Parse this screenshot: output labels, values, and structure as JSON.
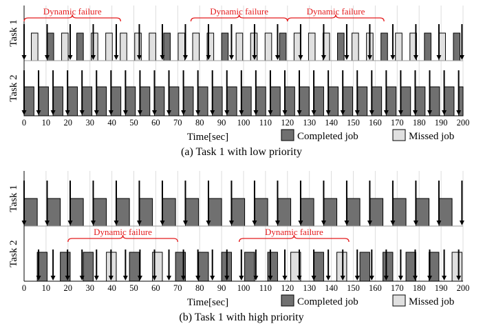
{
  "chart_data": [
    {
      "type": "gantt",
      "caption": "(a) Task 1 with low priority",
      "xlabel": "Time[sec]",
      "xlim": [
        0,
        200
      ],
      "xticks": [
        0,
        10,
        20,
        30,
        40,
        50,
        60,
        70,
        80,
        90,
        100,
        110,
        120,
        130,
        140,
        150,
        160,
        170,
        180,
        190,
        200
      ],
      "legend": [
        {
          "label": "Completed job",
          "color": "#707070"
        },
        {
          "label": "Missed job",
          "color": "#e0e0e0"
        }
      ],
      "rows": [
        {
          "name": "Task 1",
          "arrivals": [
            0,
            10.5,
            21,
            31.5,
            42,
            52.5,
            63,
            73.5,
            84,
            94.5,
            105,
            115.5,
            126,
            136.5,
            147,
            157.5,
            168,
            178.5,
            189,
            199.5
          ],
          "jobs": [
            {
              "start": 3.3,
              "end": 6.3,
              "status": "missed"
            },
            {
              "start": 10.5,
              "end": 13.5,
              "status": "completed"
            },
            {
              "start": 17.1,
              "end": 20.1,
              "status": "missed"
            },
            {
              "start": 24,
              "end": 27,
              "status": "completed"
            },
            {
              "start": 30.6,
              "end": 33.6,
              "status": "missed"
            },
            {
              "start": 37.2,
              "end": 40.2,
              "status": "missed"
            },
            {
              "start": 43.8,
              "end": 46.8,
              "status": "missed"
            },
            {
              "start": 50.4,
              "end": 53.4,
              "status": "missed"
            },
            {
              "start": 57,
              "end": 60,
              "status": "missed"
            },
            {
              "start": 63.6,
              "end": 66.6,
              "status": "completed"
            },
            {
              "start": 70.2,
              "end": 73.2,
              "status": "missed"
            },
            {
              "start": 76.8,
              "end": 79.8,
              "status": "missed"
            },
            {
              "start": 83.4,
              "end": 86.4,
              "status": "missed"
            },
            {
              "start": 90,
              "end": 93,
              "status": "completed"
            },
            {
              "start": 96.6,
              "end": 99.6,
              "status": "missed"
            },
            {
              "start": 103.2,
              "end": 106.2,
              "status": "missed"
            },
            {
              "start": 109.8,
              "end": 112.8,
              "status": "missed"
            },
            {
              "start": 116.4,
              "end": 119.4,
              "status": "completed"
            },
            {
              "start": 123,
              "end": 126,
              "status": "missed"
            },
            {
              "start": 129.6,
              "end": 132.6,
              "status": "missed"
            },
            {
              "start": 136.2,
              "end": 139.2,
              "status": "missed"
            },
            {
              "start": 142.8,
              "end": 145.8,
              "status": "completed"
            },
            {
              "start": 149.4,
              "end": 152.4,
              "status": "missed"
            },
            {
              "start": 156,
              "end": 159,
              "status": "missed"
            },
            {
              "start": 162.6,
              "end": 165.6,
              "status": "completed"
            },
            {
              "start": 169.2,
              "end": 172.2,
              "status": "missed"
            },
            {
              "start": 175.8,
              "end": 178.8,
              "status": "missed"
            },
            {
              "start": 182.4,
              "end": 185.4,
              "status": "completed"
            },
            {
              "start": 189,
              "end": 192,
              "status": "missed"
            },
            {
              "start": 195.6,
              "end": 198.6,
              "status": "completed"
            }
          ]
        },
        {
          "name": "Task 2",
          "arrivals": [
            0,
            6.6,
            13.2,
            19.8,
            26.4,
            33,
            39.6,
            46.2,
            52.8,
            59.4,
            66,
            72.6,
            79.2,
            85.8,
            92.4,
            99,
            105.6,
            112.2,
            118.8,
            125.4,
            132,
            138.6,
            145.2,
            151.8,
            158.4,
            165,
            171.6,
            178.2,
            184.8,
            191.4,
            198
          ],
          "jobs": [
            {
              "start": 0,
              "end": 4.5,
              "status": "completed"
            },
            {
              "start": 6.6,
              "end": 11.1,
              "status": "completed"
            },
            {
              "start": 13.2,
              "end": 17.7,
              "status": "completed"
            },
            {
              "start": 19.8,
              "end": 24.3,
              "status": "completed"
            },
            {
              "start": 26.4,
              "end": 30.9,
              "status": "completed"
            },
            {
              "start": 33,
              "end": 37.5,
              "status": "completed"
            },
            {
              "start": 39.6,
              "end": 44.1,
              "status": "completed"
            },
            {
              "start": 46.2,
              "end": 50.7,
              "status": "completed"
            },
            {
              "start": 52.8,
              "end": 57.3,
              "status": "completed"
            },
            {
              "start": 59.4,
              "end": 63.9,
              "status": "completed"
            },
            {
              "start": 66,
              "end": 70.5,
              "status": "completed"
            },
            {
              "start": 72.6,
              "end": 77.1,
              "status": "completed"
            },
            {
              "start": 79.2,
              "end": 83.7,
              "status": "completed"
            },
            {
              "start": 85.8,
              "end": 90.3,
              "status": "completed"
            },
            {
              "start": 92.4,
              "end": 96.9,
              "status": "completed"
            },
            {
              "start": 99,
              "end": 103.5,
              "status": "completed"
            },
            {
              "start": 105.6,
              "end": 110.1,
              "status": "completed"
            },
            {
              "start": 112.2,
              "end": 116.7,
              "status": "completed"
            },
            {
              "start": 118.8,
              "end": 123.3,
              "status": "completed"
            },
            {
              "start": 125.4,
              "end": 129.9,
              "status": "completed"
            },
            {
              "start": 132,
              "end": 136.5,
              "status": "completed"
            },
            {
              "start": 138.6,
              "end": 143.1,
              "status": "completed"
            },
            {
              "start": 145.2,
              "end": 149.7,
              "status": "completed"
            },
            {
              "start": 151.8,
              "end": 156.3,
              "status": "completed"
            },
            {
              "start": 158.4,
              "end": 162.9,
              "status": "completed"
            },
            {
              "start": 165,
              "end": 169.5,
              "status": "completed"
            },
            {
              "start": 171.6,
              "end": 176.1,
              "status": "completed"
            },
            {
              "start": 178.2,
              "end": 182.7,
              "status": "completed"
            },
            {
              "start": 184.8,
              "end": 189.3,
              "status": "completed"
            },
            {
              "start": 191.4,
              "end": 195.9,
              "status": "completed"
            },
            {
              "start": 198,
              "end": 200,
              "status": "completed"
            }
          ]
        }
      ],
      "annotations": [
        {
          "text": "Dynamic failure",
          "row": 0,
          "start": 0,
          "end": 44
        },
        {
          "text": "Dynamic failure",
          "row": 0,
          "start": 76,
          "end": 120
        },
        {
          "text": "Dynamic failure",
          "row": 0,
          "start": 120,
          "end": 164
        }
      ]
    },
    {
      "type": "gantt",
      "caption": "(b) Task 1 with high priority",
      "xlabel": "Time[sec]",
      "xlim": [
        0,
        200
      ],
      "xticks": [
        0,
        10,
        20,
        30,
        40,
        50,
        60,
        70,
        80,
        90,
        100,
        110,
        120,
        130,
        140,
        150,
        160,
        170,
        180,
        190,
        200
      ],
      "legend": [
        {
          "label": "Completed job",
          "color": "#707070"
        },
        {
          "label": "Missed job",
          "color": "#e0e0e0"
        }
      ],
      "rows": [
        {
          "name": "Task 1",
          "arrivals": [
            0,
            10.5,
            21,
            31.5,
            42,
            52.5,
            63,
            73.5,
            84,
            94.5,
            105,
            115.5,
            126,
            136.5,
            147,
            157.5,
            168,
            178.5,
            189,
            199.5
          ],
          "jobs": [
            {
              "start": 0,
              "end": 6,
              "status": "completed"
            },
            {
              "start": 10.5,
              "end": 16.5,
              "status": "completed"
            },
            {
              "start": 21,
              "end": 27,
              "status": "completed"
            },
            {
              "start": 31.5,
              "end": 37.5,
              "status": "completed"
            },
            {
              "start": 42,
              "end": 48,
              "status": "completed"
            },
            {
              "start": 52.5,
              "end": 58.5,
              "status": "completed"
            },
            {
              "start": 63,
              "end": 69,
              "status": "completed"
            },
            {
              "start": 73.5,
              "end": 79.5,
              "status": "completed"
            },
            {
              "start": 84,
              "end": 90,
              "status": "completed"
            },
            {
              "start": 94.5,
              "end": 100.5,
              "status": "completed"
            },
            {
              "start": 105,
              "end": 111,
              "status": "completed"
            },
            {
              "start": 115.5,
              "end": 121.5,
              "status": "completed"
            },
            {
              "start": 126,
              "end": 132,
              "status": "completed"
            },
            {
              "start": 136.5,
              "end": 142.5,
              "status": "completed"
            },
            {
              "start": 147,
              "end": 153,
              "status": "completed"
            },
            {
              "start": 157.5,
              "end": 163.5,
              "status": "completed"
            },
            {
              "start": 168,
              "end": 174,
              "status": "completed"
            },
            {
              "start": 178.5,
              "end": 184.5,
              "status": "completed"
            },
            {
              "start": 189,
              "end": 195,
              "status": "completed"
            }
          ]
        },
        {
          "name": "Task 2",
          "arrivals": [
            6.6,
            13.2,
            19.8,
            26.4,
            33,
            39.6,
            46.2,
            52.8,
            59.4,
            66,
            72.6,
            79.2,
            85.8,
            92.4,
            99,
            105.6,
            112.2,
            118.8,
            125.4,
            132,
            138.6,
            145.2,
            151.8,
            158.4,
            165,
            171.6,
            178.2,
            184.8,
            191.4,
            198
          ],
          "jobs": [
            {
              "start": 6,
              "end": 10.5,
              "status": "completed"
            },
            {
              "start": 16.5,
              "end": 21,
              "status": "completed"
            },
            {
              "start": 27,
              "end": 31.5,
              "status": "completed"
            },
            {
              "start": 37.5,
              "end": 42,
              "status": "missed"
            },
            {
              "start": 48,
              "end": 52.5,
              "status": "completed"
            },
            {
              "start": 58.5,
              "end": 63,
              "status": "missed"
            },
            {
              "start": 69,
              "end": 73.5,
              "status": "completed"
            },
            {
              "start": 79.5,
              "end": 84,
              "status": "completed"
            },
            {
              "start": 90,
              "end": 94.5,
              "status": "completed"
            },
            {
              "start": 100.5,
              "end": 105,
              "status": "completed"
            },
            {
              "start": 111,
              "end": 115.5,
              "status": "completed"
            },
            {
              "start": 121.5,
              "end": 126,
              "status": "missed"
            },
            {
              "start": 132,
              "end": 136.5,
              "status": "completed"
            },
            {
              "start": 142.5,
              "end": 147,
              "status": "missed"
            },
            {
              "start": 153,
              "end": 157.5,
              "status": "completed"
            },
            {
              "start": 163.5,
              "end": 168,
              "status": "completed"
            },
            {
              "start": 174,
              "end": 178.5,
              "status": "completed"
            },
            {
              "start": 184.5,
              "end": 189,
              "status": "completed"
            },
            {
              "start": 195,
              "end": 199.5,
              "status": "missed"
            }
          ]
        }
      ],
      "annotations": [
        {
          "text": "Dynamic failure",
          "row": 1,
          "start": 20,
          "end": 70
        },
        {
          "text": "Dynamic failure",
          "row": 1,
          "start": 98,
          "end": 148
        }
      ]
    }
  ]
}
